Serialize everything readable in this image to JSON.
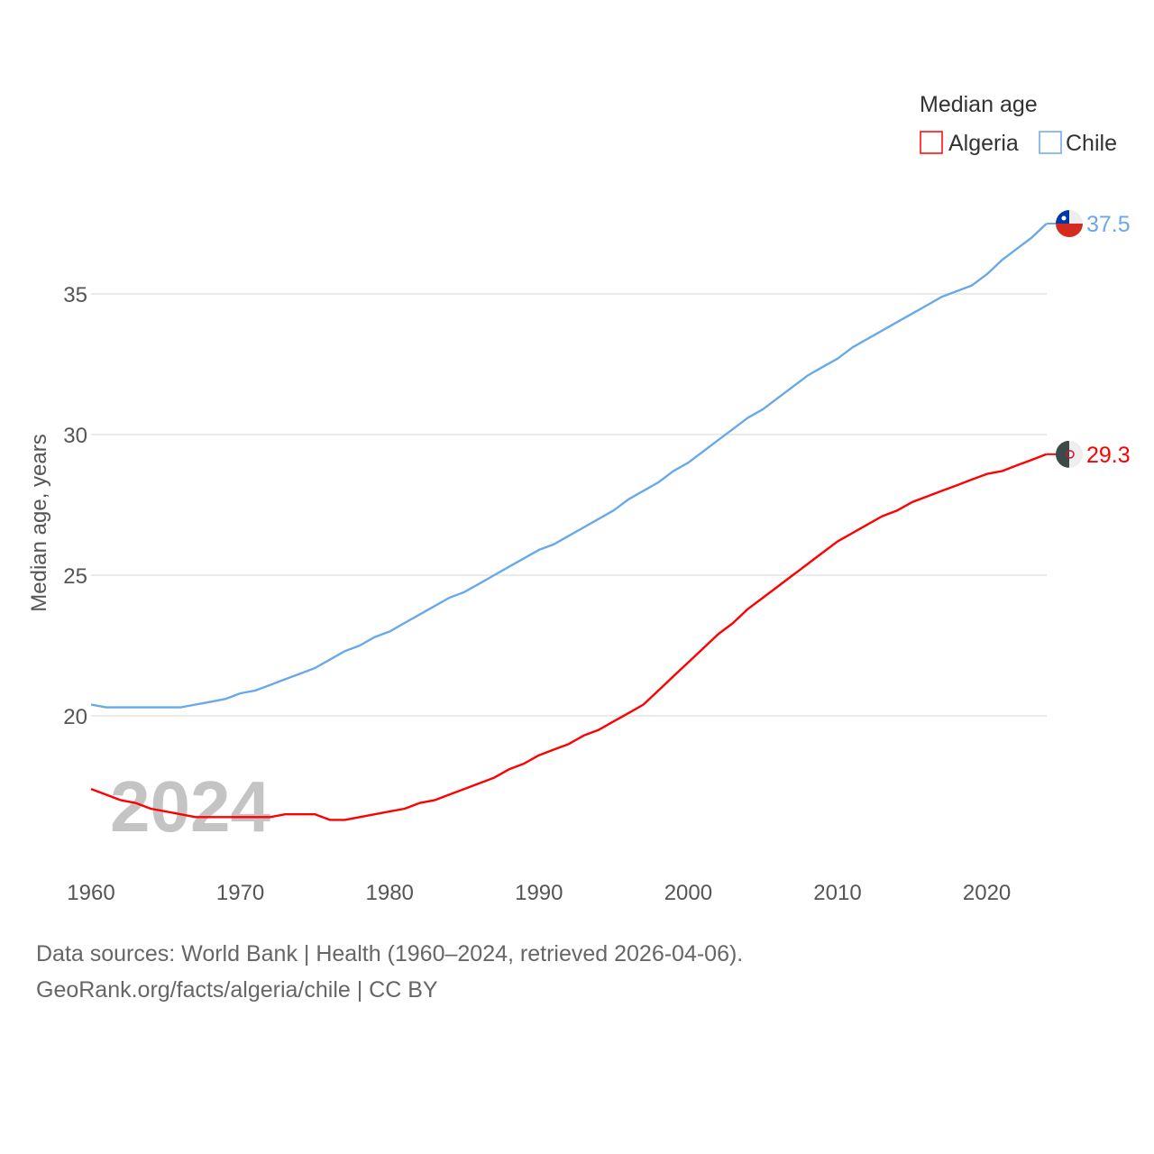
{
  "chart_data": {
    "type": "line",
    "title": "",
    "xlabel": "",
    "ylabel": "Median age, years",
    "legend_title": "Median age",
    "legend_placement": "top-right",
    "watermark_year": "2024",
    "xlim": [
      1960,
      2024
    ],
    "ylim": [
      14.85,
      38
    ],
    "x_ticks": [
      1960,
      1970,
      1980,
      1990,
      2000,
      2010,
      2020
    ],
    "y_ticks": [
      20,
      25,
      30,
      35
    ],
    "grid": true,
    "x": [
      1960,
      1961,
      1962,
      1963,
      1964,
      1965,
      1966,
      1967,
      1968,
      1969,
      1970,
      1971,
      1972,
      1973,
      1974,
      1975,
      1976,
      1977,
      1978,
      1979,
      1980,
      1981,
      1982,
      1983,
      1984,
      1985,
      1986,
      1987,
      1988,
      1989,
      1990,
      1991,
      1992,
      1993,
      1994,
      1995,
      1996,
      1997,
      1998,
      1999,
      2000,
      2001,
      2002,
      2003,
      2004,
      2005,
      2006,
      2007,
      2008,
      2009,
      2010,
      2011,
      2012,
      2013,
      2014,
      2015,
      2016,
      2017,
      2018,
      2019,
      2020,
      2021,
      2022,
      2023,
      2024
    ],
    "series": [
      {
        "name": "Algeria",
        "color": "#ff0000",
        "end_label": "29.3",
        "values": [
          17.4,
          17.2,
          17.0,
          16.9,
          16.7,
          16.6,
          16.5,
          16.4,
          16.4,
          16.4,
          16.4,
          16.4,
          16.4,
          16.5,
          16.5,
          16.5,
          16.3,
          16.3,
          16.4,
          16.5,
          16.6,
          16.7,
          16.9,
          17.0,
          17.2,
          17.4,
          17.6,
          17.8,
          18.1,
          18.3,
          18.6,
          18.8,
          19.0,
          19.3,
          19.5,
          19.8,
          20.1,
          20.4,
          20.9,
          21.4,
          21.9,
          22.4,
          22.9,
          23.3,
          23.8,
          24.2,
          24.6,
          25.0,
          25.4,
          25.8,
          26.2,
          26.5,
          26.8,
          27.1,
          27.3,
          27.6,
          27.8,
          28.0,
          28.2,
          28.4,
          28.6,
          28.7,
          28.9,
          29.1,
          29.3
        ]
      },
      {
        "name": "Chile",
        "color": "#6aa9e9",
        "end_label": "37.5",
        "values": [
          20.4,
          20.3,
          20.3,
          20.3,
          20.3,
          20.3,
          20.3,
          20.4,
          20.5,
          20.6,
          20.8,
          20.9,
          21.1,
          21.3,
          21.5,
          21.7,
          22.0,
          22.3,
          22.5,
          22.8,
          23.0,
          23.3,
          23.6,
          23.9,
          24.2,
          24.4,
          24.7,
          25.0,
          25.3,
          25.6,
          25.9,
          26.1,
          26.4,
          26.7,
          27.0,
          27.3,
          27.7,
          28.0,
          28.3,
          28.7,
          29.0,
          29.4,
          29.8,
          30.2,
          30.6,
          30.9,
          31.3,
          31.7,
          32.1,
          32.4,
          32.7,
          33.1,
          33.4,
          33.7,
          34.0,
          34.3,
          34.6,
          34.9,
          35.1,
          35.3,
          35.7,
          36.2,
          36.6,
          37.0,
          37.5
        ]
      }
    ]
  },
  "footer": {
    "source": "Data sources: World Bank | Health (1960–2024, retrieved 2026-04-06).",
    "link": "GeoRank.org/facts/algeria/chile | CC BY"
  }
}
